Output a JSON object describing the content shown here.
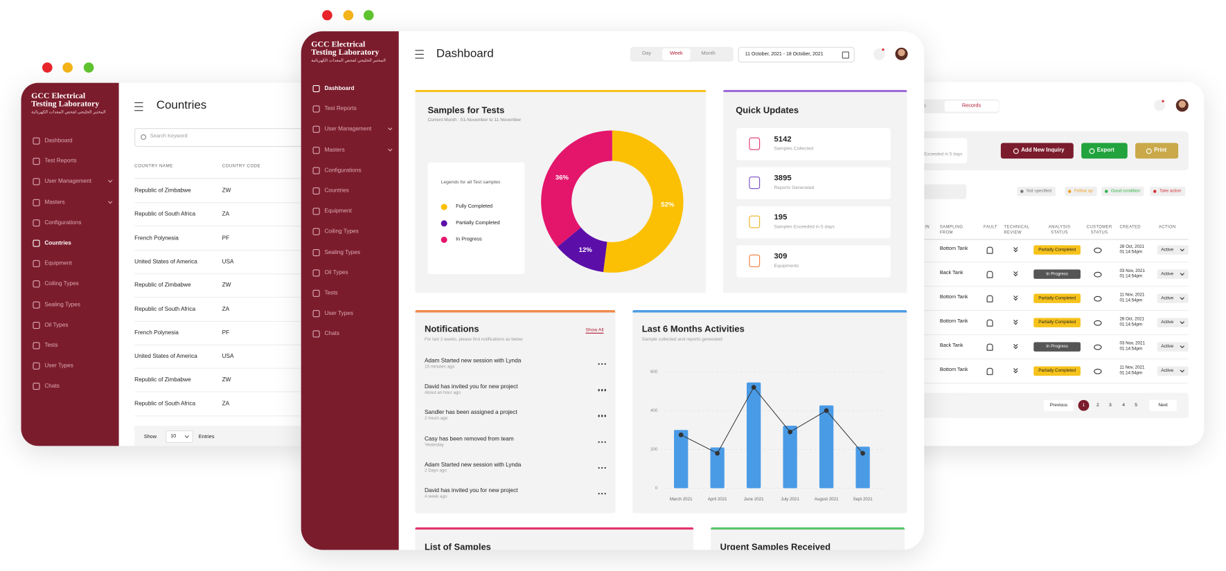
{
  "sidebar": {
    "brand": "GCC Electrical Testing Laboratory",
    "brand_arabic": "المختبر الخليجي لفحص المعدات الكهربائية",
    "menu": [
      "Dashboard",
      "Test Reports",
      "User Management",
      "Masters",
      "Configurations",
      "Countries",
      "Equipment",
      "Coiling Types",
      "Sealing Types",
      "Oil Types",
      "Tests",
      "User Types",
      "Chats"
    ]
  },
  "countries_page": {
    "title": "Countries",
    "search_placeholder": "Search Keyword",
    "columns": [
      "COUNTRY NAME",
      "COUNTRY CODE"
    ],
    "rows": [
      [
        "Republic of Zimbabwe",
        "ZW"
      ],
      [
        "Republic of South Africa",
        "ZA"
      ],
      [
        "French Polynesia",
        "PF"
      ],
      [
        "United States of America",
        "USA"
      ],
      [
        "Republic of Zimbabwe",
        "ZW"
      ],
      [
        "Republic of South Africa",
        "ZA"
      ],
      [
        "French Polynesia",
        "PF"
      ],
      [
        "United States of America",
        "USA"
      ],
      [
        "Republic of Zimbabwe",
        "ZW"
      ],
      [
        "Republic of South Africa",
        "ZA"
      ]
    ],
    "show": "Show",
    "page_size": 10,
    "entries": "Entries"
  },
  "dashboard": {
    "title": "Dashboard",
    "periods": [
      "Day",
      "Week",
      "Month"
    ],
    "date_range": "11 October, 2021 - 18 October, 2021",
    "quick_updates": {
      "title": "Quick Updates",
      "items": [
        {
          "value": 5142,
          "label": "Samples Collected",
          "color": "#e2336b"
        },
        {
          "value": 3895,
          "label": "Reports Generated",
          "color": "#7b4bc4"
        },
        {
          "value": 195,
          "label": "Samples Exceeded in 5 days",
          "color": "#e8b21a"
        },
        {
          "value": 309,
          "label": "Equipments",
          "color": "#ef7d3c"
        }
      ]
    },
    "notifications": {
      "title": "Notifications",
      "subtitle": "For last 2 weeks, please find notifications as below",
      "show_all": "Show All",
      "items": [
        {
          "text": "Adam Started new session with Lynda",
          "time": "15 minutes ago"
        },
        {
          "text": "David has invited you for new project",
          "time": "About an hour ago"
        },
        {
          "text": "Sandler has been assigned a project",
          "time": "2 hours ago"
        },
        {
          "text": "Casy has been removed from team",
          "time": "Yesterday"
        },
        {
          "text": "Adam Started new session with Lynda",
          "time": "2 Days ago"
        },
        {
          "text": "David has invited you for new project",
          "time": "A week ago"
        }
      ]
    },
    "list_of_samples": "List of Samples",
    "urgent_samples": "Urgent Samples Received"
  },
  "records_page": {
    "tabs": [
      "s",
      "Records"
    ],
    "exceeded_note": "Exceeded in 5 days",
    "buttons": [
      {
        "label": "Add New Inquiry",
        "color": "#7b1c2c"
      },
      {
        "label": "Export",
        "color": "#22a33d"
      },
      {
        "label": "Print",
        "color": "#c9a94a"
      }
    ],
    "status_legend": [
      {
        "label": "Not specified",
        "color": "#777777"
      },
      {
        "label": "Follow up",
        "color": "#f0a020"
      },
      {
        "label": "Good condition",
        "color": "#2fb344"
      },
      {
        "label": "Take action",
        "color": "#d9343c"
      }
    ],
    "columns": [
      "IN",
      "SAMPLING FROM",
      "FAULT",
      "TECHNICAL REVIEW",
      "ANALYSIS STATUS",
      "CUSTOMER STATUS",
      "CREATED",
      "ACTION"
    ],
    "rows": [
      {
        "sampling_from": "Bottom Tank",
        "analysis_status": "Partially Completed",
        "status_color": "#f6c21b",
        "status_text": "#222222",
        "created_date": "28 Oct, 2021",
        "created_time": "01:14:54pm",
        "action": "Active"
      },
      {
        "sampling_from": "Back Tank",
        "analysis_status": "In Progress",
        "status_color": "#555555",
        "status_text": "#ffffff",
        "created_date": "03 Nov, 2021",
        "created_time": "01:14:54pm",
        "action": "Active"
      },
      {
        "sampling_from": "Bottom Tank",
        "analysis_status": "Partially Completed",
        "status_color": "#f6c21b",
        "status_text": "#222222",
        "created_date": "11 Nov, 2021",
        "created_time": "01:14:54pm",
        "action": "Active"
      },
      {
        "sampling_from": "Bottom Tank",
        "analysis_status": "Partially Completed",
        "status_color": "#f6c21b",
        "status_text": "#222222",
        "created_date": "28 Oct, 2021",
        "created_time": "01:14:54pm",
        "action": "Active"
      },
      {
        "sampling_from": "Back Tank",
        "analysis_status": "In Progress",
        "status_color": "#555555",
        "status_text": "#ffffff",
        "created_date": "03 Nov, 2021",
        "created_time": "01:14:54pm",
        "action": "Active"
      },
      {
        "sampling_from": "Bottom Tank",
        "analysis_status": "Partially Completed",
        "status_color": "#f6c21b",
        "status_text": "#222222",
        "created_date": "11 Nov, 2021",
        "created_time": "01:14:54pm",
        "action": "Active"
      }
    ],
    "pagination": {
      "previous": "Previous",
      "pages": [
        1,
        2,
        3,
        4,
        5
      ],
      "next": "Next"
    }
  },
  "chart_data": [
    {
      "type": "pie",
      "donut": true,
      "title": "Samples for Tests",
      "subtitle": "Current Month : 01-November to 11 November",
      "legend_title": "Legends for all Test samples",
      "categories": [
        "Fully Completed",
        "Partially Completed",
        "In Progress"
      ],
      "values": [
        52,
        12,
        36
      ],
      "value_labels": [
        "52%",
        "12%",
        "36%"
      ],
      "colors": [
        "#fbc004",
        "#5b0fa8",
        "#e3166c"
      ]
    },
    {
      "type": "bar",
      "title": "Last 6 Months Activities",
      "subtitle": "Sample collected and reports generated",
      "categories": [
        "March 2021",
        "April 2021",
        "June 2021",
        "July 2021",
        "August 2021",
        "Sept 2021"
      ],
      "series": [
        {
          "type": "bar",
          "color": "#4a9be6",
          "values": [
            300,
            210,
            545,
            322,
            427,
            214
          ]
        },
        {
          "type": "line",
          "color": "#333333",
          "values": [
            275,
            180,
            520,
            290,
            400,
            180
          ]
        }
      ],
      "ylim": [
        0,
        600
      ],
      "yticks": [
        0,
        200,
        400,
        600
      ],
      "grid": true
    }
  ]
}
